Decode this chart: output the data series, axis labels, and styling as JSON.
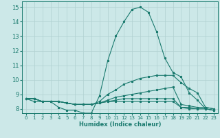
{
  "xlabel": "Humidex (Indice chaleur)",
  "ylabel": "",
  "bg_color": "#cce8e8",
  "line_color": "#1a7a6e",
  "grid_color": "#b0d0d0",
  "xlim": [
    -0.5,
    23.5
  ],
  "ylim": [
    7.7,
    15.4
  ],
  "xticks": [
    0,
    1,
    2,
    3,
    4,
    5,
    6,
    7,
    8,
    9,
    10,
    11,
    12,
    13,
    14,
    15,
    16,
    17,
    18,
    19,
    20,
    21,
    22,
    23
  ],
  "yticks": [
    8,
    9,
    10,
    11,
    12,
    13,
    14,
    15
  ],
  "lines": [
    [
      8.7,
      8.5,
      8.5,
      8.5,
      8.1,
      7.9,
      7.9,
      7.7,
      7.7,
      8.9,
      11.3,
      13.0,
      14.0,
      14.85,
      15.0,
      14.65,
      13.3,
      11.5,
      10.5,
      10.2,
      9.1,
      8.6,
      8.0,
      7.9
    ],
    [
      8.7,
      8.7,
      8.5,
      8.5,
      8.5,
      8.4,
      8.3,
      8.3,
      8.3,
      8.5,
      9.0,
      9.3,
      9.7,
      9.9,
      10.1,
      10.2,
      10.3,
      10.3,
      10.3,
      9.8,
      9.4,
      9.1,
      8.1,
      8.0
    ],
    [
      8.7,
      8.7,
      8.5,
      8.5,
      8.5,
      8.4,
      8.3,
      8.3,
      8.3,
      8.4,
      8.6,
      8.8,
      8.9,
      9.0,
      9.1,
      9.2,
      9.3,
      9.4,
      9.5,
      8.3,
      8.2,
      8.1,
      8.1,
      8.0
    ],
    [
      8.7,
      8.7,
      8.5,
      8.5,
      8.5,
      8.4,
      8.3,
      8.3,
      8.3,
      8.4,
      8.5,
      8.6,
      8.7,
      8.7,
      8.7,
      8.7,
      8.7,
      8.7,
      8.7,
      8.1,
      8.1,
      8.0,
      8.0,
      7.9
    ],
    [
      8.7,
      8.7,
      8.5,
      8.5,
      8.5,
      8.4,
      8.3,
      8.3,
      8.3,
      8.4,
      8.5,
      8.5,
      8.5,
      8.5,
      8.5,
      8.5,
      8.5,
      8.5,
      8.5,
      8.1,
      8.0,
      8.0,
      8.0,
      7.9
    ]
  ]
}
